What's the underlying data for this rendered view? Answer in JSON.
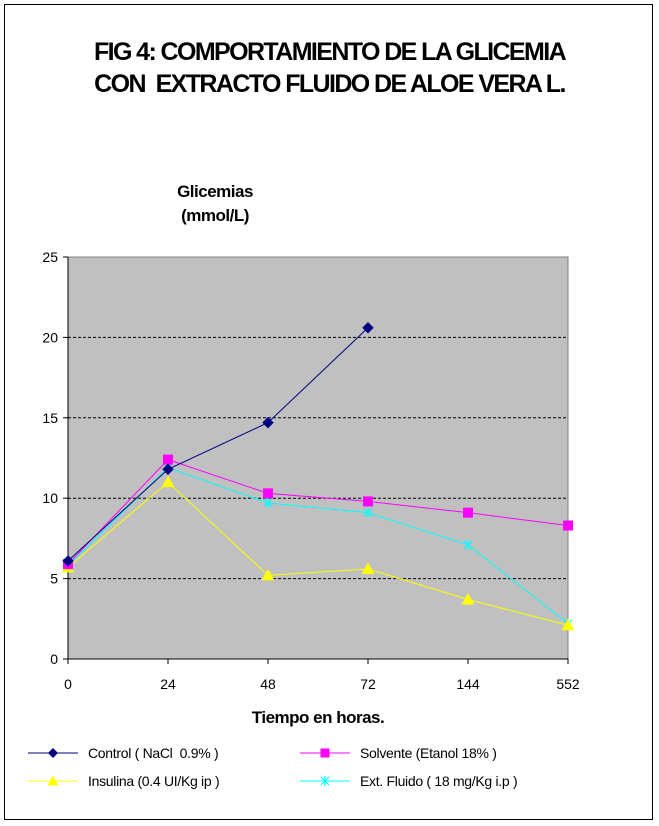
{
  "title_lines": [
    "FIG 4: COMPORTAMIENTO DE LA GLICEMIA",
    "CON  EXTRACTO FLUIDO DE ALOE VERA L."
  ],
  "chart_data": {
    "type": "line",
    "categories": [
      "0",
      "24",
      "48",
      "72",
      "144",
      "552"
    ],
    "ylabel_lines": [
      "Glicemias",
      "(mmol/L)"
    ],
    "xlabel": "Tiempo en horas.",
    "ylim": [
      0,
      25
    ],
    "yticks": [
      0,
      5,
      10,
      15,
      20,
      25
    ],
    "grid": "horizontal dashed",
    "legend_position": "bottom",
    "plot_background": "#c0c0c0",
    "series": [
      {
        "name": "Control ( NaCl  0.9% )",
        "color": "#000080",
        "marker": "diamond",
        "values": [
          6.1,
          11.8,
          14.7,
          20.6,
          null,
          null
        ]
      },
      {
        "name": "Solvente (Etanol 18% )",
        "color": "#ff00ff",
        "marker": "square",
        "values": [
          5.9,
          12.4,
          10.3,
          9.8,
          9.1,
          8.3
        ]
      },
      {
        "name": "Insulina (0.4 UI/Kg ip )",
        "color": "#ffff00",
        "marker": "triangle",
        "values": [
          5.7,
          11.0,
          5.2,
          5.6,
          3.7,
          2.1
        ]
      },
      {
        "name": "Ext. Fluido ( 18 mg/Kg i.p )",
        "color": "#00ffff",
        "marker": "x",
        "values": [
          5.8,
          11.9,
          9.7,
          9.1,
          7.1,
          2.2
        ]
      }
    ]
  }
}
